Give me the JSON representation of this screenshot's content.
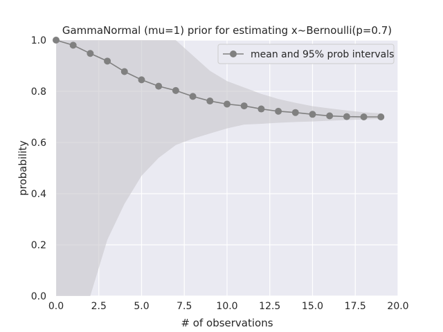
{
  "chart_data": {
    "type": "line",
    "title": "GammaNormal (mu=1) prior for estimating x~Bernoulli(p=0.7)",
    "xlabel": "# of observations",
    "ylabel": "probability",
    "xlim": [
      0,
      20
    ],
    "ylim": [
      0,
      1
    ],
    "xticks": [
      0,
      2.5,
      5,
      7.5,
      10,
      12.5,
      15,
      17.5,
      20
    ],
    "xtick_labels": [
      "0.0",
      "2.5",
      "5.0",
      "7.5",
      "10.0",
      "12.5",
      "15.0",
      "17.5",
      "20.0"
    ],
    "yticks": [
      0,
      0.2,
      0.4,
      0.6,
      0.8,
      1.0
    ],
    "ytick_labels": [
      "0.0",
      "0.2",
      "0.4",
      "0.6",
      "0.8",
      "1.0"
    ],
    "grid": true,
    "legend_position": "top-right",
    "colors": {
      "plot_bg": "#eaeaf2",
      "grid": "#ffffff",
      "line": "#808080",
      "band": "#c8c6cc",
      "legend_bg": "#eaeaf2",
      "legend_border": "#cccccc"
    },
    "series": [
      {
        "name": "mean and 95% prob intervals",
        "x": [
          0,
          1,
          2,
          3,
          4,
          5,
          6,
          7,
          8,
          9,
          10,
          11,
          12,
          13,
          14,
          15,
          16,
          17,
          18,
          19
        ],
        "y": [
          1.0,
          0.98,
          0.948,
          0.918,
          0.877,
          0.845,
          0.82,
          0.803,
          0.78,
          0.762,
          0.75,
          0.743,
          0.731,
          0.722,
          0.717,
          0.71,
          0.704,
          0.701,
          0.7,
          0.7
        ],
        "lower": [
          0.0,
          0.0,
          0.0,
          0.22,
          0.36,
          0.47,
          0.54,
          0.59,
          0.615,
          0.635,
          0.655,
          0.67,
          0.673,
          0.677,
          0.68,
          0.682,
          0.685,
          0.688,
          0.69,
          0.692
        ],
        "upper": [
          1.0,
          1.0,
          1.0,
          1.0,
          1.0,
          1.0,
          1.0,
          1.0,
          0.94,
          0.88,
          0.84,
          0.815,
          0.79,
          0.77,
          0.755,
          0.742,
          0.733,
          0.725,
          0.718,
          0.714
        ]
      }
    ]
  }
}
